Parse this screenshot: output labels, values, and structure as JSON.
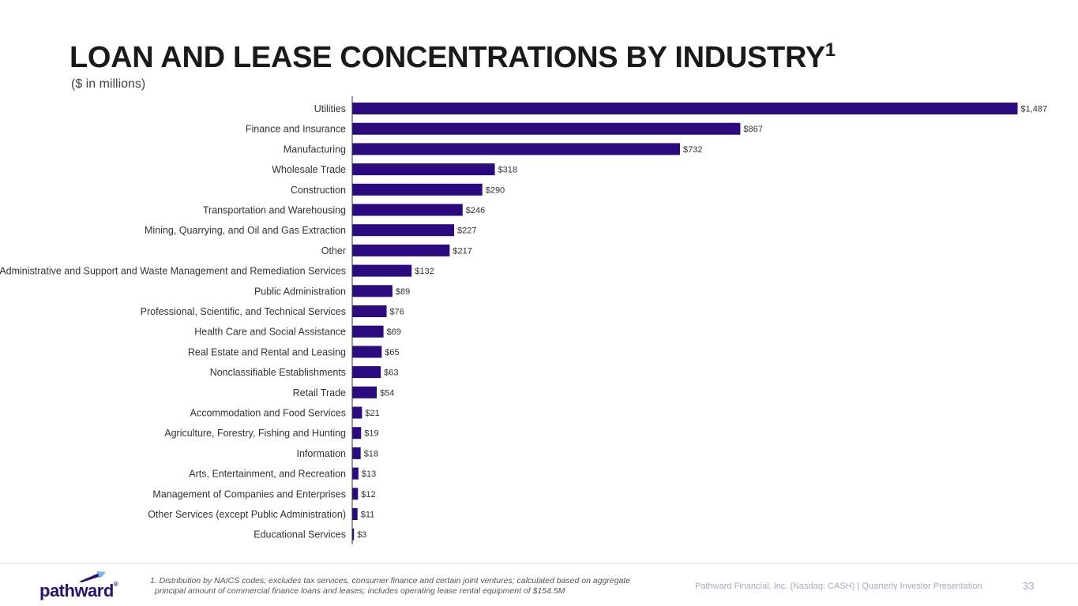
{
  "page": {
    "title": "LOAN AND LEASE CONCENTRATIONS BY INDUSTRY",
    "title_superscript": "1",
    "subtitle": "($ in millions)"
  },
  "footer": {
    "logo_text": "pathward",
    "logo_mark": "®",
    "footnote_line1": "1. Distribution by NAICS codes; excludes tax services, consumer finance and certain joint ventures; calculated based on aggregate",
    "footnote_line2": "principal amount of commercial finance loans and leases; includes operating lease rental equipment of $154.5M",
    "right_text": "Pathward Financial, Inc. (Nasdaq: CASH) | Quarterly Investor Presentation",
    "page_number": "33"
  },
  "colors": {
    "bar": "#2a0a7e",
    "axis": "#333333",
    "label": "#333333"
  },
  "chart_data": {
    "type": "bar",
    "orientation": "horizontal",
    "title": "LOAN AND LEASE CONCENTRATIONS BY INDUSTRY",
    "units": "$ in millions",
    "xlim": [
      0,
      1487
    ],
    "grid": false,
    "legend": "none",
    "categories": [
      "Utilities",
      "Finance and Insurance",
      "Manufacturing",
      "Wholesale Trade",
      "Construction",
      "Transportation and Warehousing",
      "Mining, Quarrying, and Oil and Gas Extraction",
      "Other",
      "Administrative and Support and Waste Management and Remediation Services",
      "Public Administration",
      "Professional, Scientific, and Technical Services",
      "Health Care and Social Assistance",
      "Real Estate and Rental and Leasing",
      "Nonclassifiable Establishments",
      "Retail Trade",
      "Accommodation and Food Services",
      "Agriculture, Forestry, Fishing and Hunting",
      "Information",
      "Arts, Entertainment, and Recreation",
      "Management of Companies and Enterprises",
      "Other Services (except Public Administration)",
      "Educational Services"
    ],
    "values": [
      1487,
      867,
      732,
      318,
      290,
      246,
      227,
      217,
      132,
      89,
      76,
      69,
      65,
      63,
      54,
      21,
      19,
      18,
      13,
      12,
      11,
      3
    ],
    "value_labels": [
      "$1,487",
      "$867",
      "$732",
      "$318",
      "$290",
      "$246",
      "$227",
      "$217",
      "$132",
      "$89",
      "$76",
      "$69",
      "$65",
      "$63",
      "$54",
      "$21",
      "$19",
      "$18",
      "$13",
      "$12",
      "$11",
      "$3"
    ]
  }
}
